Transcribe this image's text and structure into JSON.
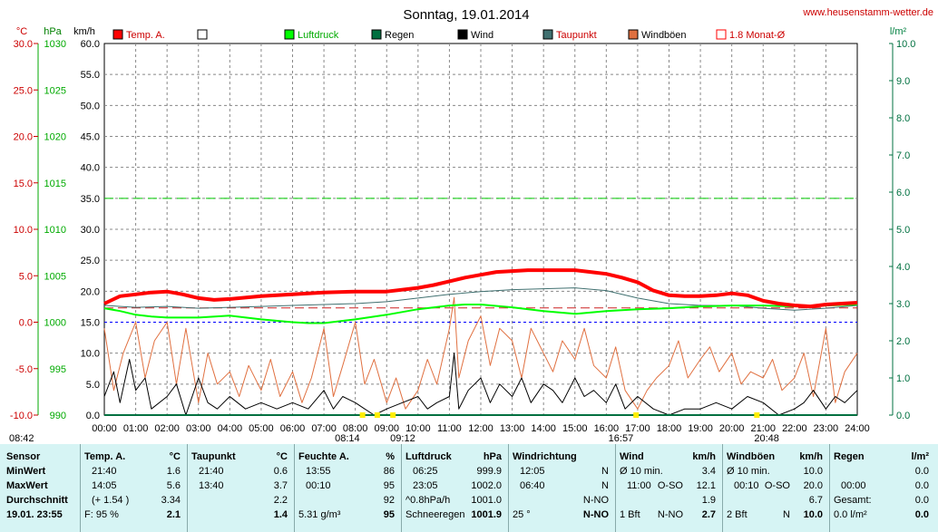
{
  "header": {
    "title": "Sonntag, 19.01.2014",
    "site": "www.heusenstamm-wetter.de",
    "unit_labels": [
      "°C",
      "hPa",
      "km/h",
      "l/m²"
    ]
  },
  "legend": [
    {
      "label": "Temp. A.",
      "color": "#ff0000",
      "filled": true
    },
    {
      "label": "",
      "color": "#000000",
      "filled": false
    },
    {
      "label": "Luftdruck",
      "color": "#00ff00",
      "filled": true
    },
    {
      "label": "Regen",
      "color": "#007040",
      "filled": true
    },
    {
      "label": "Wind",
      "color": "#000000",
      "filled": true
    },
    {
      "label": "Taupunkt",
      "color": "#407070",
      "filled": true
    },
    {
      "label": "Windböen",
      "color": "#e07040",
      "filled": true
    },
    {
      "label": "1.8 Monat-Ø",
      "color": "#ff0000",
      "filled": false
    }
  ],
  "axes": {
    "temp": [
      "30.0",
      "25.0",
      "20.0",
      "15.0",
      "10.0",
      "5.0",
      "0.0",
      "-5.0",
      "-10.0"
    ],
    "pressure": [
      "1030",
      "1025",
      "1020",
      "1015",
      "1010",
      "1005",
      "1000",
      "995",
      "990"
    ],
    "wind": [
      "60.0",
      "55.0",
      "50.0",
      "45.0",
      "40.0",
      "35.0",
      "30.0",
      "25.0",
      "20.0",
      "15.0",
      "10.0",
      "5.0",
      "0.0"
    ],
    "rain": [
      "10.0",
      "9.0",
      "8.0",
      "7.0",
      "6.0",
      "5.0",
      "4.0",
      "3.0",
      "2.0",
      "1.0",
      "0.0"
    ],
    "hours": [
      "00:00",
      "01:00",
      "02:00",
      "03:00",
      "04:00",
      "05:00",
      "06:00",
      "07:00",
      "08:00",
      "09:00",
      "10:00",
      "11:00",
      "12:00",
      "13:00",
      "14:00",
      "15:00",
      "16:00",
      "17:00",
      "18:00",
      "19:00",
      "20:00",
      "21:00",
      "22:00",
      "23:00",
      "24:00"
    ],
    "sun": [
      {
        "time": "08:42",
        "h": 8.7
      },
      {
        "time": "08:14",
        "h": 8.23
      },
      {
        "time": "09:12",
        "h": 9.2
      },
      {
        "time": "16:57",
        "h": 16.95
      },
      {
        "time": "20:48",
        "h": 20.8
      }
    ]
  },
  "chart_data": {
    "type": "line",
    "title": "Sonntag, 19.01.2014",
    "x_unit": "hour of day",
    "xlim": [
      0,
      24
    ],
    "grid": true,
    "legend_position": "top",
    "axes_ranges": {
      "temp_c": [
        -10,
        30
      ],
      "pressure_hpa": [
        990,
        1030
      ],
      "wind_kmh": [
        0,
        60
      ],
      "rain_lm2": [
        0,
        10
      ]
    },
    "reference_lines": {
      "luftdruck_1000": 1000,
      "wind_35": 35,
      "temp_month_avg": 1.54
    },
    "series": [
      {
        "name": "Temp. A.",
        "axis": "temp",
        "color": "#ff0000",
        "x": [
          0,
          0.5,
          1,
          1.5,
          2,
          2.5,
          3,
          3.5,
          4,
          5,
          6,
          7,
          8,
          9,
          10,
          10.5,
          11,
          11.5,
          12,
          12.5,
          13,
          13.5,
          14,
          14.5,
          15,
          15.5,
          16,
          16.5,
          17,
          17.5,
          18,
          18.5,
          19,
          19.5,
          20,
          20.5,
          21,
          21.5,
          22,
          22.5,
          23,
          23.5,
          24
        ],
        "y": [
          2.0,
          2.8,
          3.0,
          3.2,
          3.3,
          3.0,
          2.6,
          2.4,
          2.5,
          2.8,
          3.0,
          3.2,
          3.3,
          3.3,
          3.7,
          4.0,
          4.4,
          4.8,
          5.1,
          5.4,
          5.5,
          5.6,
          5.6,
          5.6,
          5.6,
          5.4,
          5.2,
          4.8,
          4.3,
          3.4,
          2.9,
          2.8,
          2.8,
          2.9,
          3.1,
          2.9,
          2.3,
          2.0,
          1.8,
          1.7,
          1.9,
          2.0,
          2.1
        ]
      },
      {
        "name": "Taupunkt",
        "axis": "temp",
        "color": "#407070",
        "x": [
          0,
          1,
          2,
          3,
          4,
          5,
          6,
          7,
          8,
          9,
          10,
          11,
          12,
          13,
          14,
          15,
          16,
          17,
          18,
          19,
          20,
          21,
          22,
          23,
          24
        ],
        "y": [
          1.8,
          1.6,
          1.7,
          1.5,
          1.6,
          1.7,
          1.8,
          1.9,
          2.0,
          2.2,
          2.6,
          3.0,
          3.3,
          3.5,
          3.6,
          3.7,
          3.4,
          2.6,
          2.0,
          1.8,
          1.8,
          1.5,
          1.3,
          1.5,
          1.8
        ]
      },
      {
        "name": "Luftdruck",
        "axis": "pressure",
        "color": "#00ff00",
        "x": [
          0,
          0.5,
          1,
          1.5,
          2,
          3,
          4,
          5,
          6,
          6.5,
          7,
          8,
          9,
          10,
          11,
          11.5,
          12,
          13,
          14,
          15,
          16,
          17,
          18,
          19,
          20,
          21,
          22,
          23,
          24
        ],
        "y": [
          1001.5,
          1001.2,
          1000.8,
          1000.6,
          1000.5,
          1000.5,
          1000.7,
          1000.3,
          1000.0,
          999.9,
          999.9,
          1000.3,
          1000.8,
          1001.4,
          1001.8,
          1001.9,
          1001.9,
          1001.6,
          1001.2,
          1000.9,
          1001.2,
          1001.4,
          1001.5,
          1001.7,
          1001.8,
          1001.8,
          1001.7,
          1001.8,
          1001.9
        ]
      },
      {
        "name": "Wind",
        "axis": "wind",
        "color": "#000000",
        "x": [
          0,
          0.3,
          0.5,
          0.8,
          1,
          1.3,
          1.5,
          2,
          2.3,
          2.6,
          3,
          3.3,
          3.6,
          4,
          4.5,
          5,
          5.5,
          6,
          6.5,
          7,
          7.3,
          7.6,
          8,
          8.3,
          8.6,
          9,
          9.5,
          10,
          10.3,
          10.6,
          11,
          11.15,
          11.3,
          11.6,
          12,
          12.3,
          12.6,
          13,
          13.3,
          13.6,
          14,
          14.3,
          14.6,
          15,
          15.3,
          15.6,
          16,
          16.3,
          16.6,
          17,
          17.5,
          18,
          18.5,
          19,
          19.5,
          20,
          20.5,
          21,
          21.5,
          22,
          22.3,
          22.6,
          23,
          23.3,
          23.6,
          24
        ],
        "y": [
          3,
          7,
          2,
          9,
          4,
          6,
          1,
          3,
          5,
          0,
          6,
          2,
          1,
          3,
          1,
          2,
          1,
          2,
          1,
          4,
          1,
          3,
          2,
          1,
          0,
          1,
          2,
          3,
          1,
          2,
          3,
          10,
          1,
          4,
          6,
          2,
          5,
          3,
          6,
          2,
          5,
          4,
          2,
          6,
          3,
          4,
          2,
          5,
          1,
          3,
          1,
          0,
          1,
          1,
          2,
          1,
          3,
          2,
          0,
          1,
          2,
          4,
          1,
          3,
          2,
          4
        ]
      },
      {
        "name": "Windböen",
        "axis": "wind",
        "color": "#e07040",
        "x": [
          0,
          0.3,
          0.6,
          1,
          1.3,
          1.6,
          2,
          2.3,
          2.6,
          3,
          3.3,
          3.6,
          4,
          4.3,
          4.6,
          5,
          5.3,
          5.6,
          6,
          6.3,
          6.6,
          7,
          7.3,
          7.6,
          8,
          8.3,
          8.6,
          9,
          9.3,
          9.6,
          10,
          10.3,
          10.6,
          11,
          11.15,
          11.3,
          11.6,
          12,
          12.3,
          12.6,
          13,
          13.3,
          13.6,
          14,
          14.3,
          14.6,
          15,
          15.3,
          15.6,
          16,
          16.3,
          16.6,
          17,
          17.3,
          17.6,
          18,
          18.3,
          18.6,
          19,
          19.3,
          19.6,
          20,
          20.3,
          20.6,
          21,
          21.3,
          21.6,
          22,
          22.3,
          22.6,
          23,
          23.3,
          23.6,
          24
        ],
        "y": [
          14,
          4,
          10,
          15,
          6,
          12,
          15,
          5,
          14,
          2,
          10,
          5,
          7,
          3,
          8,
          4,
          9,
          3,
          7,
          2,
          6,
          14,
          3,
          8,
          15,
          5,
          9,
          2,
          6,
          1,
          4,
          9,
          5,
          14,
          19,
          6,
          12,
          16,
          8,
          14,
          12,
          6,
          14,
          10,
          7,
          12,
          9,
          14,
          8,
          6,
          11,
          4,
          1,
          4,
          6,
          8,
          12,
          6,
          9,
          11,
          7,
          10,
          5,
          7,
          6,
          9,
          4,
          6,
          10,
          3,
          14,
          2,
          7,
          10
        ]
      },
      {
        "name": "Regen",
        "axis": "rain",
        "color": "#007040",
        "x": [
          0,
          24
        ],
        "y": [
          0,
          0
        ]
      }
    ]
  },
  "table": [
    {
      "title": "Sensor",
      "unit": "",
      "rows": [
        "MinWert",
        "MaxWert",
        "Durchschnitt"
      ],
      "footer": "19.01. 23:55"
    },
    {
      "title": "Temp. A.",
      "unit": "°C",
      "rows": [
        [
          "21:40",
          "",
          "1.6"
        ],
        [
          "14:05",
          "",
          "5.6"
        ],
        [
          "(+ 1.54 )",
          "",
          "3.34"
        ]
      ],
      "footer": [
        "F: 95 %",
        "",
        "2.1"
      ]
    },
    {
      "title": "Taupunkt",
      "unit": "°C",
      "rows": [
        [
          "21:40",
          "",
          "0.6"
        ],
        [
          "13:40",
          "",
          "3.7"
        ],
        [
          "",
          "",
          "2.2"
        ]
      ],
      "footer": [
        "",
        "",
        "1.4"
      ]
    },
    {
      "title": "Feuchte A.",
      "unit": "%",
      "rows": [
        [
          "13:55",
          "",
          "86"
        ],
        [
          "00:10",
          "",
          "95"
        ],
        [
          "",
          "",
          "92"
        ]
      ],
      "footer": [
        "5.31 g/m³",
        "",
        "95"
      ]
    },
    {
      "title": "Luftdruck",
      "unit": "hPa",
      "rows": [
        [
          "06:25",
          "",
          "999.9"
        ],
        [
          "23:05",
          "",
          "1002.0"
        ],
        [
          "^0.8hPa/h",
          "",
          "1001.0"
        ]
      ],
      "footer": [
        "Schneeregen",
        "",
        "1001.9"
      ]
    },
    {
      "title": "Windrichtung",
      "unit": "",
      "rows": [
        [
          "12:05",
          "",
          "N"
        ],
        [
          "06:40",
          "",
          "N"
        ],
        [
          "",
          "",
          "N-NO"
        ]
      ],
      "footer": [
        "25 °",
        "",
        "N-NO"
      ]
    },
    {
      "title": "Wind",
      "unit": "km/h",
      "rows": [
        [
          "Ø 10 min.",
          "",
          "3.4"
        ],
        [
          "11:00",
          "O-SO",
          "12.1"
        ],
        [
          "",
          "",
          "1.9"
        ]
      ],
      "footer": [
        "1 Bft",
        "N-NO",
        "2.7"
      ]
    },
    {
      "title": "Windböen",
      "unit": "km/h",
      "rows": [
        [
          "Ø 10 min.",
          "",
          "10.0"
        ],
        [
          "00:10",
          "O-SO",
          "20.0"
        ],
        [
          "",
          "",
          "6.7"
        ]
      ],
      "footer": [
        "2 Bft",
        "N",
        "10.0"
      ]
    },
    {
      "title": "Regen",
      "unit": "l/m²",
      "rows": [
        [
          "",
          "",
          "0.0"
        ],
        [
          "00:00",
          "",
          "0.0"
        ],
        [
          "Gesamt:",
          "",
          "0.0"
        ]
      ],
      "footer": [
        "0.0 l/m²",
        "",
        "0.0"
      ]
    }
  ]
}
